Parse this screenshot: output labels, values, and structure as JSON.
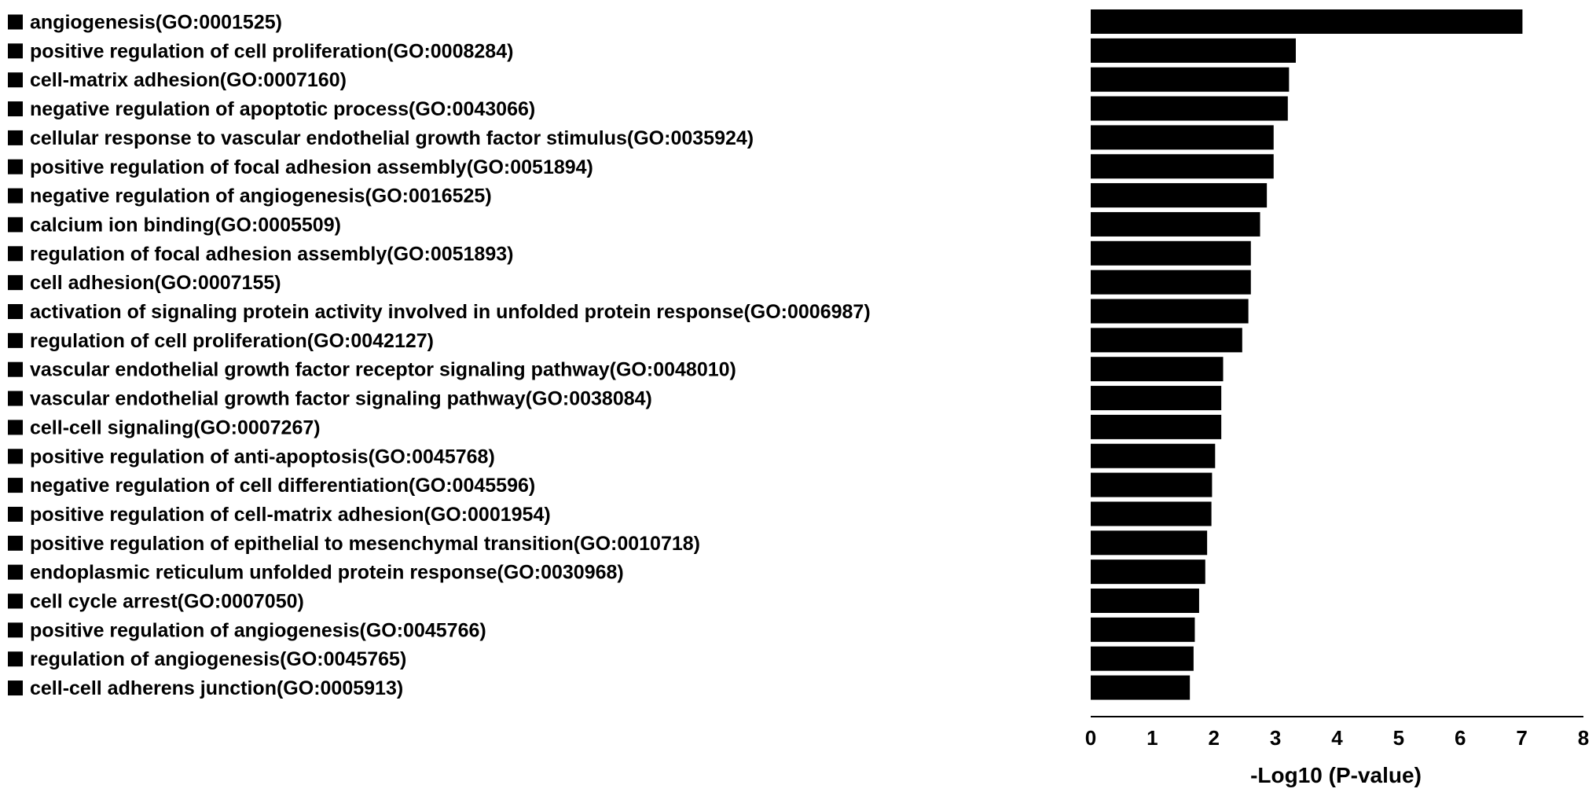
{
  "chart_data": {
    "type": "bar",
    "orientation": "horizontal",
    "xlabel": "-Log10 (P-value)",
    "ylabel": "",
    "xlim": [
      0,
      8
    ],
    "xticks": [
      "0",
      "1",
      "2",
      "3",
      "4",
      "5",
      "6",
      "7",
      "8"
    ],
    "legend_marker": "square",
    "bar_color": "#000000",
    "grid": false,
    "categories": [
      "angiogenesis(GO:0001525)",
      "positive regulation of cell proliferation(GO:0008284)",
      "cell-matrix adhesion(GO:0007160)",
      "negative regulation of apoptotic process(GO:0043066)",
      "cellular response to vascular endothelial growth factor stimulus(GO:0035924)",
      "positive regulation of focal adhesion assembly(GO:0051894)",
      "negative regulation of angiogenesis(GO:0016525)",
      "calcium ion binding(GO:0005509)",
      "regulation of focal adhesion assembly(GO:0051893)",
      "cell adhesion(GO:0007155)",
      "activation of signaling protein activity involved in unfolded protein response(GO:0006987)",
      "regulation of cell proliferation(GO:0042127)",
      "vascular endothelial growth factor receptor signaling pathway(GO:0048010)",
      "vascular endothelial growth factor signaling pathway(GO:0038084)",
      "cell-cell signaling(GO:0007267)",
      "positive regulation of anti-apoptosis(GO:0045768)",
      "negative regulation of cell differentiation(GO:0045596)",
      "positive regulation of cell-matrix adhesion(GO:0001954)",
      "positive regulation of epithelial to mesenchymal transition(GO:0010718)",
      "endoplasmic reticulum unfolded protein response(GO:0030968)",
      "cell cycle arrest(GO:0007050)",
      "positive regulation of angiogenesis(GO:0045766)",
      "regulation of angiogenesis(GO:0045765)",
      "cell-cell adherens junction(GO:0005913)"
    ],
    "values": [
      7.01,
      3.33,
      3.22,
      3.2,
      2.97,
      2.97,
      2.86,
      2.75,
      2.6,
      2.6,
      2.56,
      2.46,
      2.15,
      2.12,
      2.12,
      2.02,
      1.97,
      1.96,
      1.89,
      1.86,
      1.76,
      1.69,
      1.67,
      1.61
    ]
  }
}
